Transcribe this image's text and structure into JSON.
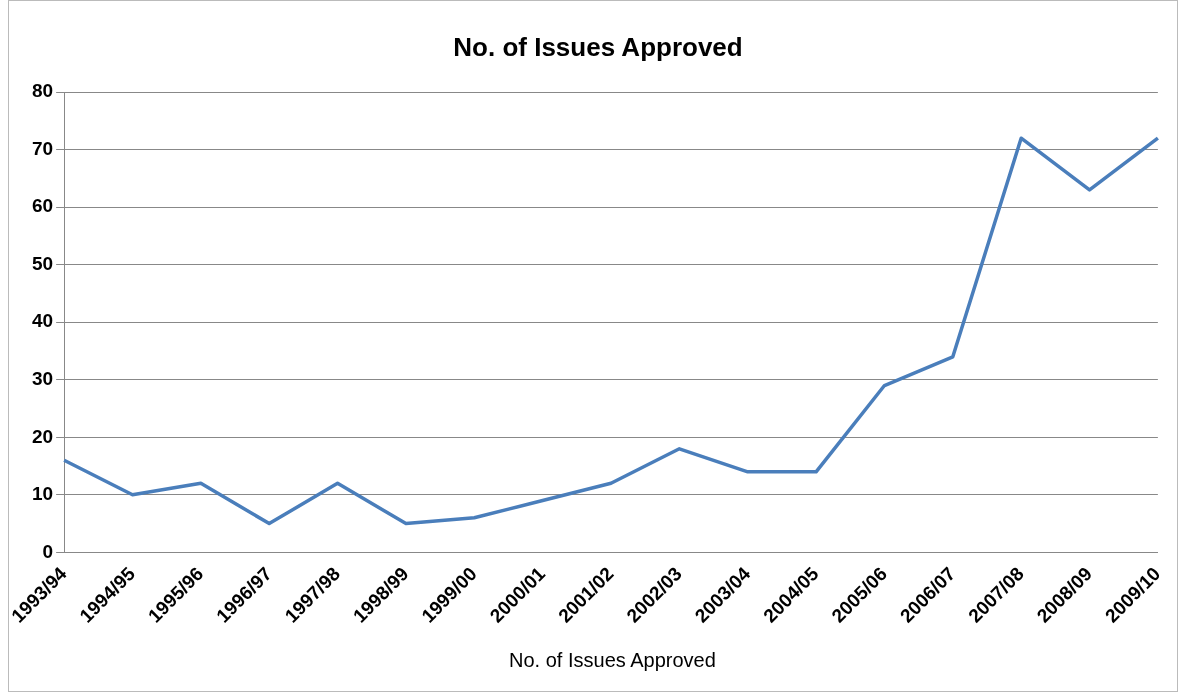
{
  "chart_data": {
    "type": "line",
    "title": "No. of Issues Approved",
    "categories": [
      "1993/94",
      "1994/95",
      "1995/96",
      "1996/97",
      "1997/98",
      "1998/99",
      "1999/00",
      "2000/01",
      "2001/02",
      "2002/03",
      "2003/04",
      "2004/05",
      "2005/06",
      "2006/07",
      "2007/08",
      "2008/09",
      "2009/10"
    ],
    "series": [
      {
        "name": "No. of Issues Approved",
        "color": "#4a7ebb",
        "values": [
          16,
          10,
          12,
          5,
          12,
          5,
          6,
          9,
          12,
          18,
          14,
          14,
          29,
          34,
          72,
          63,
          72
        ]
      }
    ],
    "ylim": [
      0,
      80
    ],
    "yticks": [
      0,
      10,
      20,
      30,
      40,
      50,
      60,
      70,
      80
    ],
    "grid": "y",
    "legend": "bottom",
    "marker": "none",
    "line_style": "solid"
  }
}
